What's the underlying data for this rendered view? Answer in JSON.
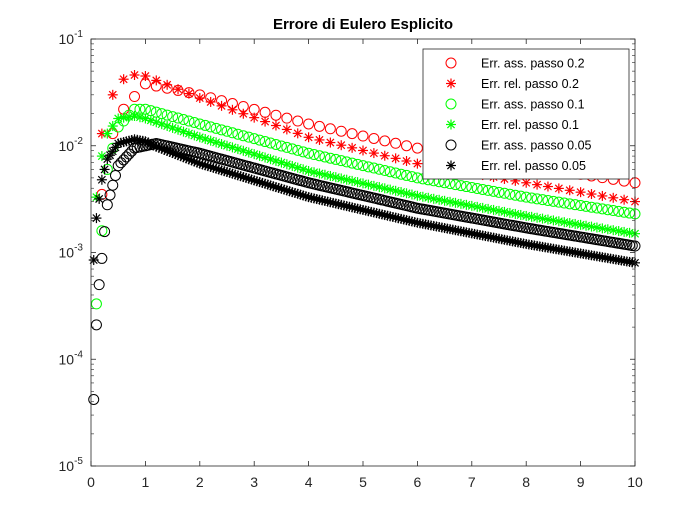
{
  "chart_data": {
    "type": "scatter",
    "title": "Errore di Eulero Esplicito",
    "xlabel": "",
    "ylabel": "",
    "xlim": [
      0,
      10
    ],
    "ylim": [
      1e-05,
      0.1
    ],
    "yscale": "log",
    "xticks": [
      "0",
      "1",
      "2",
      "3",
      "4",
      "5",
      "6",
      "7",
      "8",
      "9",
      "10"
    ],
    "yticks": [
      {
        "value": 0.1,
        "base": "10",
        "exp": "-1"
      },
      {
        "value": 0.01,
        "base": "10",
        "exp": "-2"
      },
      {
        "value": 0.001,
        "base": "10",
        "exp": "-3"
      },
      {
        "value": 0.0001,
        "base": "10",
        "exp": "-4"
      },
      {
        "value": 1e-05,
        "base": "10",
        "exp": "-5"
      }
    ],
    "grid": false,
    "legend_position": "top-right",
    "series": [
      {
        "name": "Err. ass. passo 0.2",
        "marker": "circle",
        "color": "#ff0000",
        "step": 0.2,
        "x": [
          0.2,
          0.4,
          0.6,
          1.0,
          2.0,
          4.0,
          6.0,
          8.0,
          10.0
        ],
        "y": [
          0.0035,
          0.013,
          0.022,
          0.038,
          0.03,
          0.016,
          0.0095,
          0.0065,
          0.0045
        ]
      },
      {
        "name": "Err. rel. passo 0.2",
        "marker": "star",
        "color": "#ff0000",
        "step": 0.2,
        "x": [
          0.2,
          0.4,
          0.6,
          0.8,
          1.0,
          2.0,
          4.0,
          6.0,
          8.0,
          10.0
        ],
        "y": [
          0.013,
          0.03,
          0.042,
          0.046,
          0.045,
          0.028,
          0.012,
          0.0068,
          0.0045,
          0.003
        ]
      },
      {
        "name": "Err. ass. passo 0.1",
        "marker": "circle",
        "color": "#00ff00",
        "step": 0.1,
        "x": [
          0.1,
          0.2,
          0.3,
          0.5,
          0.8,
          1.0,
          2.0,
          4.0,
          6.0,
          8.0,
          10.0
        ],
        "y": [
          0.00033,
          0.0016,
          0.006,
          0.015,
          0.022,
          0.022,
          0.016,
          0.0085,
          0.005,
          0.0033,
          0.0023
        ]
      },
      {
        "name": "Err. rel. passo 0.1",
        "marker": "star",
        "color": "#00ff00",
        "step": 0.1,
        "x": [
          0.1,
          0.2,
          0.3,
          0.5,
          0.8,
          1.0,
          2.0,
          4.0,
          6.0,
          8.0,
          10.0
        ],
        "y": [
          0.0033,
          0.008,
          0.013,
          0.018,
          0.019,
          0.018,
          0.012,
          0.0058,
          0.0034,
          0.0022,
          0.0015
        ]
      },
      {
        "name": "Err. ass. passo 0.05",
        "marker": "circle",
        "color": "#000000",
        "step": 0.05,
        "x": [
          0.05,
          0.1,
          0.15,
          0.2,
          0.3,
          0.5,
          0.8,
          1.2,
          2.0,
          4.0,
          6.0,
          8.0,
          10.0
        ],
        "y": [
          4.2e-05,
          0.00021,
          0.0005,
          0.00088,
          0.0028,
          0.0065,
          0.0095,
          0.0105,
          0.0085,
          0.0045,
          0.0026,
          0.0017,
          0.00115
        ]
      },
      {
        "name": "Err. rel. passo 0.05",
        "marker": "star",
        "color": "#000000",
        "step": 0.05,
        "x": [
          0.05,
          0.1,
          0.2,
          0.3,
          0.5,
          0.8,
          1.0,
          1.2,
          2.0,
          4.0,
          6.0,
          8.0,
          10.0
        ],
        "y": [
          0.00085,
          0.0021,
          0.0048,
          0.0075,
          0.0105,
          0.0115,
          0.011,
          0.0098,
          0.0068,
          0.0033,
          0.0019,
          0.0012,
          0.0008
        ]
      }
    ]
  }
}
